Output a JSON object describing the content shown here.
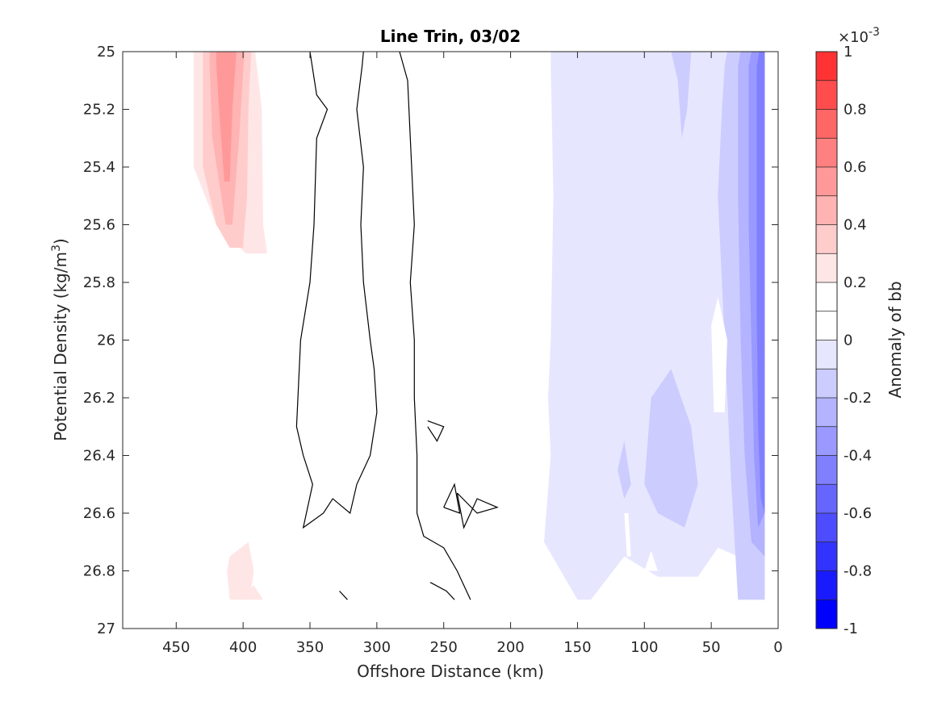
{
  "chart_data": {
    "type": "contour",
    "title": "Line Trin, 03/02",
    "xlabel": "Offshore Distance (km)",
    "ylabel": "Potential Density (kg/m",
    "ylabel_sup": "3",
    "ylabel_close": ")",
    "xlim": [
      490,
      0
    ],
    "ylim": [
      27,
      25
    ],
    "x_reversed": true,
    "y_reversed": true,
    "x_ticks": [
      450,
      400,
      350,
      300,
      250,
      200,
      150,
      100,
      50,
      0
    ],
    "y_ticks": [
      25,
      25.2,
      25.4,
      25.6,
      25.8,
      26,
      26.2,
      26.4,
      26.6,
      26.8,
      27
    ],
    "x_tick_labels": [
      "450",
      "400",
      "350",
      "300",
      "250",
      "200",
      "150",
      "100",
      "50",
      "0"
    ],
    "y_tick_labels": [
      "25",
      "25.2",
      "25.4",
      "25.6",
      "25.8",
      "26",
      "26.2",
      "26.4",
      "26.6",
      "26.8",
      "27"
    ],
    "grid": false,
    "colorbar": {
      "label": "Anomaly of bb",
      "exponent_prefix": "×10",
      "exponent": "-3",
      "range": [
        -1,
        1
      ],
      "levels": [
        -1,
        -0.9,
        -0.8,
        -0.7,
        -0.6,
        -0.5,
        -0.4,
        -0.3,
        -0.2,
        -0.1,
        0,
        0.1,
        0.2,
        0.3,
        0.4,
        0.5,
        0.6,
        0.7,
        0.8,
        0.9,
        1
      ],
      "tick_values": [
        1,
        0.8,
        0.6,
        0.4,
        0.2,
        0,
        -0.2,
        -0.4,
        -0.6,
        -0.8,
        -1
      ],
      "tick_labels": [
        "1",
        "0.8",
        "0.6",
        "0.4",
        "0.2",
        "0",
        "-0.2",
        "-0.4",
        "-0.6",
        "-0.8",
        "-1"
      ],
      "colors": [
        "#0000ff",
        "#1a1aff",
        "#3333ff",
        "#4d4dff",
        "#6666ff",
        "#8080ff",
        "#9999ff",
        "#b3b3ff",
        "#ccccff",
        "#e6e6ff",
        "#ffffff",
        "#ffffff",
        "#ffe6e6",
        "#ffcccc",
        "#ffb3b3",
        "#ff9999",
        "#ff8080",
        "#ff6666",
        "#ff4d4d",
        "#ff3333",
        "#ff1a1a"
      ]
    },
    "data_extent": {
      "x": [
        490,
        10
      ],
      "y": [
        25,
        26.9
      ]
    },
    "regions": [
      {
        "level": 0.1,
        "points": [
          [
            490,
            25
          ],
          [
            410,
            25
          ],
          [
            437,
            25.05
          ],
          [
            438,
            25.6
          ],
          [
            442,
            25.8
          ],
          [
            440,
            26.2
          ],
          [
            445,
            26.4
          ],
          [
            425,
            26.75
          ],
          [
            440,
            26.9
          ],
          [
            490,
            26.9
          ]
        ]
      },
      {
        "level": 0.1,
        "points": [
          [
            445,
            25
          ],
          [
            345,
            25
          ],
          [
            340,
            25.1
          ],
          [
            335,
            25.2
          ],
          [
            333,
            25.5
          ],
          [
            330,
            25.8
          ],
          [
            323,
            26.1
          ],
          [
            330,
            26.35
          ],
          [
            330,
            26.6
          ],
          [
            322,
            26.8
          ],
          [
            320,
            26.9
          ],
          [
            373,
            26.9
          ],
          [
            375,
            26.8
          ],
          [
            388,
            26.65
          ],
          [
            395,
            26.4
          ],
          [
            408,
            26.35
          ],
          [
            420,
            26.38
          ],
          [
            440,
            26.6
          ],
          [
            450,
            26.6
          ],
          [
            445,
            26.4
          ],
          [
            440,
            26.2
          ],
          [
            440,
            25.8
          ],
          [
            438,
            25.6
          ],
          [
            445,
            25.2
          ]
        ]
      },
      {
        "level": 0.2,
        "points": [
          [
            437,
            25
          ],
          [
            391,
            25
          ],
          [
            386,
            25.2
          ],
          [
            385,
            25.6
          ],
          [
            382,
            25.7
          ],
          [
            398,
            25.7
          ],
          [
            420,
            25.6
          ],
          [
            437,
            25.4
          ],
          [
            437,
            25.05
          ]
        ]
      },
      {
        "level": 0.3,
        "points": [
          [
            430,
            25
          ],
          [
            394,
            25
          ],
          [
            396,
            25.2
          ],
          [
            397,
            25.5
          ],
          [
            400,
            25.68
          ],
          [
            410,
            25.68
          ],
          [
            420,
            25.6
          ],
          [
            430,
            25.4
          ],
          [
            430,
            25.05
          ]
        ]
      },
      {
        "level": 0.4,
        "points": [
          [
            425,
            25
          ],
          [
            399,
            25
          ],
          [
            403,
            25.3
          ],
          [
            408,
            25.6
          ],
          [
            413,
            25.6
          ],
          [
            423,
            25.3
          ],
          [
            425,
            25.05
          ]
        ]
      },
      {
        "level": 0.5,
        "points": [
          [
            420,
            25
          ],
          [
            405,
            25
          ],
          [
            408,
            25.2
          ],
          [
            410,
            25.45
          ],
          [
            414,
            25.45
          ],
          [
            418,
            25.2
          ],
          [
            420,
            25.05
          ]
        ]
      },
      {
        "level": 0.2,
        "points": [
          [
            410,
            26.75
          ],
          [
            396,
            26.7
          ],
          [
            392,
            26.8
          ],
          [
            395,
            26.9
          ],
          [
            410,
            26.9
          ],
          [
            412,
            26.8
          ]
        ]
      },
      {
        "level": 0.2,
        "points": [
          [
            402,
            26.9
          ],
          [
            392,
            26.85
          ],
          [
            385,
            26.9
          ]
        ]
      },
      {
        "level": -0.1,
        "points": [
          [
            170,
            25
          ],
          [
            10,
            25
          ],
          [
            10,
            26.9
          ],
          [
            30,
            26.9
          ],
          [
            30,
            26.75
          ],
          [
            45,
            26.72
          ],
          [
            60,
            26.82
          ],
          [
            90,
            26.82
          ],
          [
            115,
            26.75
          ],
          [
            140,
            26.9
          ],
          [
            150,
            26.9
          ],
          [
            175,
            26.7
          ],
          [
            170,
            26.4
          ],
          [
            172,
            26.2
          ],
          [
            170,
            26.0
          ],
          [
            168,
            25.5
          ],
          [
            170,
            25.05
          ]
        ]
      },
      {
        "level": -0.2,
        "points": [
          [
            80,
            25
          ],
          [
            65,
            25
          ],
          [
            68,
            25.2
          ],
          [
            72,
            25.3
          ],
          [
            75,
            25.1
          ]
        ]
      },
      {
        "level": -0.2,
        "points": [
          [
            38,
            25
          ],
          [
            10,
            25
          ],
          [
            10,
            26.9
          ],
          [
            30,
            26.9
          ],
          [
            35,
            26.5
          ],
          [
            40,
            26.0
          ],
          [
            45,
            25.5
          ],
          [
            42,
            25.2
          ],
          [
            40,
            25.05
          ]
        ]
      },
      {
        "level": -0.2,
        "points": [
          [
            95,
            26.2
          ],
          [
            80,
            26.1
          ],
          [
            65,
            26.3
          ],
          [
            60,
            26.5
          ],
          [
            70,
            26.65
          ],
          [
            90,
            26.6
          ],
          [
            100,
            26.5
          ]
        ]
      },
      {
        "level": -0.2,
        "points": [
          [
            120,
            26.45
          ],
          [
            115,
            26.55
          ],
          [
            110,
            26.5
          ],
          [
            115,
            26.35
          ]
        ]
      },
      {
        "level": -0.3,
        "points": [
          [
            28,
            25
          ],
          [
            10,
            25
          ],
          [
            10,
            26.75
          ],
          [
            20,
            26.7
          ],
          [
            25,
            26.4
          ],
          [
            28,
            26.0
          ],
          [
            30,
            25.5
          ],
          [
            30,
            25.05
          ]
        ]
      },
      {
        "level": -0.4,
        "points": [
          [
            20,
            25
          ],
          [
            10,
            25
          ],
          [
            10,
            26.6
          ],
          [
            15,
            26.65
          ],
          [
            18,
            26.4
          ],
          [
            20,
            26.0
          ],
          [
            22,
            25.6
          ],
          [
            22,
            25.05
          ]
        ]
      },
      {
        "level": -0.5,
        "points": [
          [
            14,
            25
          ],
          [
            10,
            25
          ],
          [
            10,
            26.6
          ],
          [
            13,
            26.55
          ],
          [
            15,
            26.3
          ],
          [
            16,
            25.9
          ],
          [
            16,
            25.05
          ]
        ]
      }
    ],
    "holes": [
      {
        "level": 0.0,
        "points": [
          [
            45,
            25.85
          ],
          [
            50,
            25.95
          ],
          [
            48,
            26.25
          ],
          [
            40,
            26.25
          ],
          [
            38,
            26.0
          ]
        ]
      },
      {
        "level": 0.0,
        "points": [
          [
            95,
            26.73
          ],
          [
            100,
            26.8
          ],
          [
            90,
            26.8
          ]
        ]
      },
      {
        "level": 0.0,
        "points": [
          [
            115,
            26.6
          ],
          [
            113,
            26.75
          ],
          [
            110,
            26.75
          ],
          [
            112,
            26.6
          ]
        ]
      }
    ],
    "contour_lines": [
      {
        "level": 0.0,
        "points": [
          [
            350,
            25
          ],
          [
            345,
            25.15
          ],
          [
            337,
            25.2
          ],
          [
            345,
            25.3
          ],
          [
            347,
            25.6
          ],
          [
            350,
            25.8
          ],
          [
            357,
            26
          ],
          [
            360,
            26.3
          ],
          [
            355,
            26.4
          ],
          [
            348,
            26.5
          ],
          [
            355,
            26.65
          ],
          [
            340,
            26.6
          ],
          [
            333,
            26.55
          ],
          [
            320,
            26.6
          ],
          [
            315,
            26.5
          ],
          [
            305,
            26.4
          ],
          [
            300,
            26.25
          ],
          [
            302,
            26.1
          ],
          [
            305,
            26.0
          ],
          [
            310,
            25.8
          ],
          [
            312,
            25.6
          ],
          [
            310,
            25.4
          ],
          [
            315,
            25.2
          ],
          [
            311,
            25.05
          ],
          [
            310,
            25
          ]
        ]
      },
      {
        "level": 0.0,
        "points": [
          [
            283,
            25
          ],
          [
            277,
            25.1
          ],
          [
            275,
            25.3
          ],
          [
            272,
            25.6
          ],
          [
            275,
            25.8
          ],
          [
            272,
            26.0
          ],
          [
            272,
            26.2
          ],
          [
            270,
            26.4
          ],
          [
            270,
            26.6
          ],
          [
            265,
            26.68
          ],
          [
            250,
            26.72
          ],
          [
            240,
            26.8
          ],
          [
            230,
            26.9
          ]
        ]
      },
      {
        "level": 0.0,
        "points": [
          [
            328,
            26.87
          ],
          [
            322,
            26.9
          ]
        ]
      },
      {
        "level": 0.0,
        "points": [
          [
            260,
            26.84
          ],
          [
            248,
            26.87
          ],
          [
            242,
            26.9
          ]
        ]
      },
      {
        "level": 0.0,
        "points": [
          [
            262,
            26.3
          ],
          [
            255,
            26.35
          ],
          [
            250,
            26.3
          ],
          [
            262,
            26.28
          ]
        ]
      },
      {
        "level": 0.0,
        "points": [
          [
            240,
            26.53
          ],
          [
            225,
            26.6
          ],
          [
            210,
            26.58
          ],
          [
            225,
            26.55
          ],
          [
            235,
            26.65
          ],
          [
            240,
            26.53
          ]
        ]
      },
      {
        "level": 0.0,
        "points": [
          [
            250,
            26.58
          ],
          [
            242,
            26.5
          ],
          [
            238,
            26.6
          ],
          [
            250,
            26.58
          ]
        ]
      }
    ]
  }
}
